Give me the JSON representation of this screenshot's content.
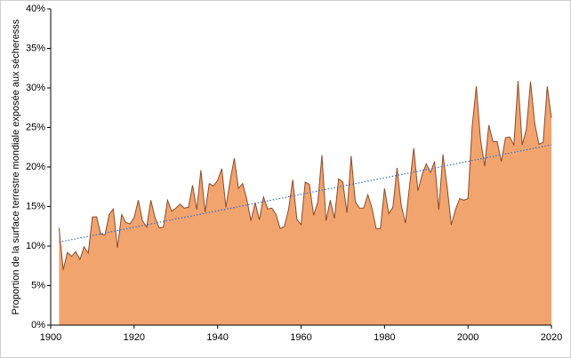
{
  "chart_data": {
    "type": "area",
    "y_label": "Proportion de la surface terrestre mondiale exposée aux sécheresss",
    "x": [
      1902,
      1903,
      1904,
      1905,
      1906,
      1907,
      1908,
      1909,
      1910,
      1911,
      1912,
      1913,
      1914,
      1915,
      1916,
      1917,
      1918,
      1919,
      1920,
      1921,
      1922,
      1923,
      1924,
      1925,
      1926,
      1927,
      1928,
      1929,
      1930,
      1931,
      1932,
      1933,
      1934,
      1935,
      1936,
      1937,
      1938,
      1939,
      1940,
      1941,
      1942,
      1943,
      1944,
      1945,
      1946,
      1947,
      1948,
      1949,
      1950,
      1951,
      1952,
      1953,
      1954,
      1955,
      1956,
      1957,
      1958,
      1959,
      1960,
      1961,
      1962,
      1963,
      1964,
      1965,
      1966,
      1967,
      1968,
      1969,
      1970,
      1971,
      1972,
      1973,
      1974,
      1975,
      1976,
      1977,
      1978,
      1979,
      1980,
      1981,
      1982,
      1983,
      1984,
      1985,
      1986,
      1987,
      1988,
      1989,
      1990,
      1991,
      1992,
      1993,
      1994,
      1995,
      1996,
      1997,
      1998,
      1999,
      2000,
      2001,
      2002,
      2003,
      2004,
      2005,
      2006,
      2007,
      2008,
      2009,
      2010,
      2011,
      2012,
      2013,
      2014,
      2015,
      2016,
      2017,
      2018,
      2019,
      2020
    ],
    "series": [
      {
        "color": "#f2a46f",
        "line_color": "#8a4b2c",
        "values": [
          12.3,
          7.0,
          9.2,
          8.7,
          9.3,
          8.3,
          9.9,
          9.1,
          13.7,
          13.7,
          11.5,
          11.4,
          14.0,
          14.7,
          9.8,
          14.0,
          13.0,
          12.8,
          13.6,
          15.8,
          13.2,
          12.4,
          15.8,
          13.6,
          12.3,
          12.4,
          15.8,
          14.4,
          14.8,
          15.3,
          14.8,
          14.9,
          17.7,
          14.6,
          19.6,
          14.3,
          17.9,
          17.6,
          18.3,
          19.8,
          14.9,
          18.3,
          21.1,
          17.3,
          17.9,
          15.9,
          13.2,
          15.5,
          13.3,
          16.2,
          14.7,
          14.8,
          14.0,
          12.2,
          12.5,
          14.6,
          18.4,
          13.4,
          12.7,
          18.1,
          17.8,
          13.9,
          15.5,
          21.5,
          13.2,
          15.8,
          13.5,
          18.5,
          18.1,
          14.2,
          21.4,
          15.6,
          14.8,
          14.8,
          16.5,
          14.8,
          12.2,
          12.2,
          17.3,
          14.1,
          14.9,
          19.9,
          15.2,
          12.9,
          17.6,
          22.4,
          17.0,
          19.0,
          20.4,
          19.3,
          20.7,
          14.6,
          21.6,
          17.5,
          12.7,
          14.6,
          16.0,
          15.8,
          16.0,
          25.1,
          30.2,
          23.5,
          20.1,
          25.3,
          23.2,
          23.2,
          20.7,
          23.7,
          23.8,
          22.8,
          30.9,
          22.8,
          24.8,
          30.8,
          25.5,
          22.9,
          23.1,
          30.2,
          26.2
        ]
      }
    ],
    "trend": {
      "x": [
        1902,
        2020
      ],
      "values": [
        10.5,
        22.8
      ],
      "color": "#3a6fc4"
    },
    "xlim": [
      1900,
      2020
    ],
    "xticks": [
      1900,
      1920,
      1940,
      1960,
      1980,
      2000,
      2020
    ],
    "ylim": [
      0,
      40
    ],
    "yticks": [
      {
        "value": 0,
        "label": "0%"
      },
      {
        "value": 5,
        "label": "5%"
      },
      {
        "value": 10,
        "label": "10%"
      },
      {
        "value": 15,
        "label": "15%"
      },
      {
        "value": 20,
        "label": "20%"
      },
      {
        "value": 25,
        "label": "25%"
      },
      {
        "value": 30,
        "label": "30%"
      },
      {
        "value": 35,
        "label": "35%"
      },
      {
        "value": 40,
        "label": "40%"
      }
    ]
  }
}
